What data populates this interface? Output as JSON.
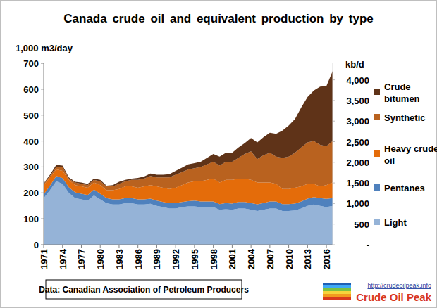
{
  "chart_data": {
    "type": "area",
    "stacked": true,
    "title": "Canada crude oil and equivalent production by type",
    "y_label": "1,000 m3/day",
    "y2_label": "kb/d",
    "source": "Data: Canadian Association of Petroleum Producers",
    "annotations": [
      "http://crudeoilpeak.info",
      "Crude Oil Peak"
    ],
    "grid": false,
    "legend": "right",
    "x": [
      1971,
      1972,
      1973,
      1974,
      1975,
      1976,
      1977,
      1978,
      1979,
      1980,
      1981,
      1982,
      1983,
      1984,
      1985,
      1986,
      1987,
      1988,
      1989,
      1990,
      1991,
      1992,
      1993,
      1994,
      1995,
      1996,
      1997,
      1998,
      1999,
      2000,
      2001,
      2002,
      2003,
      2004,
      2005,
      2006,
      2007,
      2008,
      2009,
      2010,
      2011,
      2012,
      2013,
      2014,
      2015,
      2016,
      2017
    ],
    "xlim": [
      1971,
      2017
    ],
    "xticks": [
      1971,
      1974,
      1977,
      1980,
      1983,
      1986,
      1989,
      1992,
      1995,
      1998,
      2001,
      2004,
      2007,
      2010,
      2013,
      2016
    ],
    "ylim": [
      0,
      700
    ],
    "yticks": [
      0,
      100,
      200,
      300,
      400,
      500,
      600,
      700
    ],
    "y2lim": [
      0,
      4403
    ],
    "y2ticks": [
      {
        "value": 0,
        "label": "-"
      },
      500,
      {
        "value": 1000,
        "label": "1,000"
      },
      {
        "value": 1500,
        "label": "1,500"
      },
      {
        "value": 2000,
        "label": "2,000"
      },
      {
        "value": 2500,
        "label": "2,500"
      },
      {
        "value": 3000,
        "label": "3,000"
      },
      {
        "value": 3500,
        "label": "3,500"
      },
      {
        "value": 4000,
        "label": "4,000"
      }
    ],
    "series": [
      {
        "name": "Light",
        "color": "#95b3d7",
        "values": [
          180,
          210,
          245,
          235,
          200,
          180,
          175,
          170,
          190,
          175,
          160,
          155,
          155,
          160,
          160,
          155,
          155,
          158,
          150,
          145,
          140,
          140,
          145,
          148,
          148,
          145,
          145,
          145,
          135,
          137,
          135,
          140,
          140,
          135,
          130,
          135,
          140,
          140,
          130,
          130,
          132,
          140,
          150,
          155,
          150,
          145,
          150
        ]
      },
      {
        "name": "Pentanes",
        "color": "#4f81bd",
        "values": [
          15,
          17,
          20,
          22,
          22,
          22,
          22,
          22,
          23,
          22,
          20,
          20,
          20,
          20,
          20,
          20,
          20,
          20,
          20,
          20,
          20,
          20,
          20,
          20,
          22,
          22,
          22,
          22,
          22,
          24,
          24,
          25,
          25,
          26,
          26,
          26,
          27,
          27,
          27,
          27,
          27,
          27,
          28,
          29,
          30,
          32,
          30
        ]
      },
      {
        "name": "Heavy crude oil",
        "color": "#e46c0a",
        "values": [
          35,
          33,
          25,
          28,
          28,
          28,
          28,
          28,
          27,
          33,
          30,
          35,
          40,
          45,
          45,
          45,
          50,
          52,
          55,
          55,
          55,
          60,
          65,
          72,
          75,
          78,
          83,
          88,
          83,
          89,
          91,
          90,
          90,
          89,
          84,
          79,
          73,
          68,
          58,
          58,
          61,
          58,
          57,
          51,
          45,
          53,
          60
        ]
      },
      {
        "name": "Synthetic",
        "color": "#b9621f",
        "values": [
          5,
          5,
          10,
          15,
          5,
          10,
          10,
          10,
          10,
          15,
          15,
          15,
          20,
          20,
          25,
          30,
          30,
          35,
          35,
          40,
          45,
          50,
          50,
          50,
          50,
          55,
          60,
          65,
          65,
          70,
          70,
          80,
          95,
          110,
          90,
          105,
          115,
          105,
          120,
          125,
          135,
          150,
          160,
          165,
          160,
          150,
          160
        ]
      },
      {
        "name": "Crude bitumen",
        "color": "#5f3318",
        "values": [
          2,
          5,
          8,
          5,
          5,
          3,
          5,
          5,
          5,
          5,
          3,
          5,
          8,
          5,
          5,
          8,
          8,
          10,
          10,
          10,
          12,
          15,
          17,
          20,
          20,
          20,
          25,
          30,
          35,
          35,
          35,
          40,
          42,
          52,
          65,
          70,
          77,
          88,
          105,
          120,
          130,
          155,
          175,
          195,
          225,
          232,
          270
        ]
      }
    ]
  }
}
